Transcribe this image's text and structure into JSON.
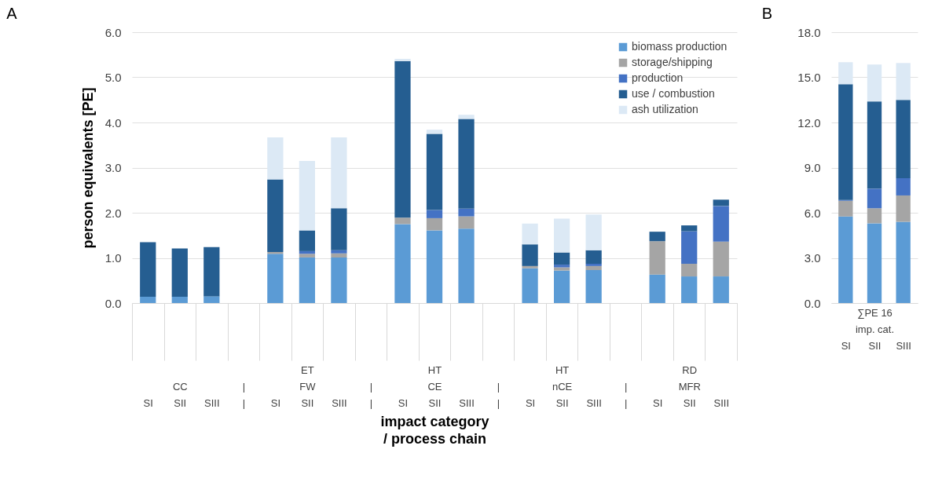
{
  "chart_data": [
    {
      "type": "bar",
      "title": "A",
      "stacked": true,
      "ylabel": "person equivalents [PE]",
      "xlabel": "impact category / process chain",
      "legend": "top right",
      "grid": "y",
      "categories": [
        "SI",
        "CC\nSII",
        "SIII",
        "|\n|",
        "SI",
        "ET\nFW\nSII",
        "SIII",
        "|\n|",
        "SI",
        "HT\nCE\nSII",
        "SIII",
        "|\n|",
        "SI",
        "HT\nnCE\nSII",
        "SIII",
        "|\n|",
        "SI",
        "RD\nMFR\nSII",
        "SIII"
      ],
      "ylim": [
        0,
        6
      ],
      "yticks": [
        {
          "value": 0,
          "label": "0.0"
        },
        {
          "value": 1,
          "label": "1.0"
        },
        {
          "value": 2,
          "label": "2.0"
        },
        {
          "value": 3,
          "label": "3.0"
        },
        {
          "value": 4,
          "label": "4.0"
        },
        {
          "value": 5,
          "label": "5.0"
        },
        {
          "value": 6,
          "label": "6.0"
        }
      ],
      "series": [
        {
          "name": "biomass production",
          "color": "#5b9bd5",
          "values": [
            0.14,
            0.14,
            0.15,
            null,
            1.09,
            1.01,
            1.01,
            null,
            1.75,
            1.61,
            1.65,
            null,
            0.77,
            0.72,
            0.73,
            null,
            0.63,
            0.59,
            0.59
          ]
        },
        {
          "name": "storage/shipping",
          "color": "#a5a5a5",
          "values": [
            0,
            0,
            0,
            null,
            0.04,
            0.08,
            0.09,
            null,
            0.14,
            0.27,
            0.27,
            null,
            0.05,
            0.07,
            0.09,
            null,
            0.74,
            0.28,
            0.77
          ]
        },
        {
          "name": "production",
          "color": "#4472c4",
          "values": [
            0,
            0,
            0,
            null,
            0,
            0.06,
            0.07,
            null,
            0,
            0.18,
            0.17,
            null,
            0,
            0.06,
            0.05,
            null,
            0,
            0.72,
            0.79
          ]
        },
        {
          "name": "use / combustion",
          "color": "#255e91",
          "values": [
            1.21,
            1.07,
            1.09,
            null,
            1.61,
            0.46,
            0.93,
            null,
            3.47,
            1.69,
            1.99,
            null,
            0.48,
            0.27,
            0.3,
            null,
            0.21,
            0.13,
            0.14
          ]
        },
        {
          "name": "ash utilization",
          "color": "#dce9f5",
          "values": [
            0,
            0,
            0,
            null,
            0.93,
            1.54,
            1.57,
            null,
            0.05,
            0.09,
            0.09,
            null,
            0.46,
            0.75,
            0.79,
            null,
            0,
            0,
            0
          ]
        }
      ]
    },
    {
      "type": "bar",
      "title": "B",
      "stacked": true,
      "grid": "y",
      "categories": [
        "SI",
        "∑PE 16\nimp. cat.\nSII",
        "SIII"
      ],
      "ylim": [
        0,
        18
      ],
      "yticks": [
        {
          "value": 0,
          "label": "0.0"
        },
        {
          "value": 3,
          "label": "3.0"
        },
        {
          "value": 6,
          "label": "6.0"
        },
        {
          "value": 9,
          "label": "9.0"
        },
        {
          "value": 12,
          "label": "12.0"
        },
        {
          "value": 15,
          "label": "15.0"
        },
        {
          "value": 18,
          "label": "18.0"
        }
      ],
      "series": [
        {
          "color": "#5b9bd5",
          "values": [
            5.75,
            5.3,
            5.4
          ]
        },
        {
          "color": "#a5a5a5",
          "values": [
            1.05,
            1.0,
            1.75
          ]
        },
        {
          "color": "#4472c4",
          "values": [
            0.05,
            1.3,
            1.15
          ]
        },
        {
          "color": "#255e91",
          "values": [
            7.7,
            5.8,
            5.2
          ]
        },
        {
          "color": "#dce9f5",
          "values": [
            1.45,
            2.45,
            2.45
          ]
        }
      ]
    }
  ]
}
